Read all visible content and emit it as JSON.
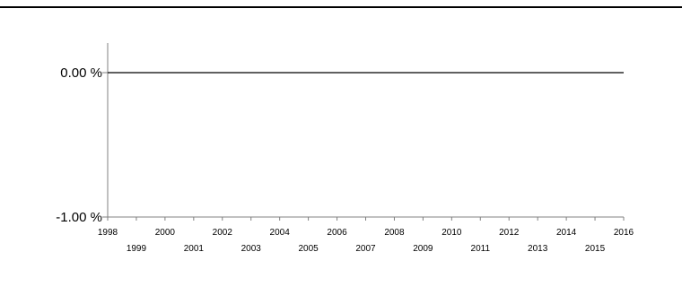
{
  "chart_data": {
    "type": "line",
    "title": "",
    "xlabel": "",
    "ylabel": "",
    "x_tick_labels": [
      "1998",
      "1999",
      "2000",
      "2001",
      "2002",
      "2003",
      "2004",
      "2005",
      "2006",
      "2007",
      "2008",
      "2009",
      "2010",
      "2011",
      "2012",
      "2013",
      "2014",
      "2015",
      "2016"
    ],
    "y_tick_labels": [
      "0.00 %",
      "-1.00 %"
    ],
    "xlim": [
      1998,
      2016
    ],
    "ylim": [
      -1.0,
      0.2
    ],
    "series": [
      {
        "x": [
          1998,
          2016
        ],
        "y": [
          0.0,
          0.0
        ]
      }
    ],
    "colors": {
      "line": "#000000",
      "axis": "#808080"
    },
    "grid": false
  }
}
